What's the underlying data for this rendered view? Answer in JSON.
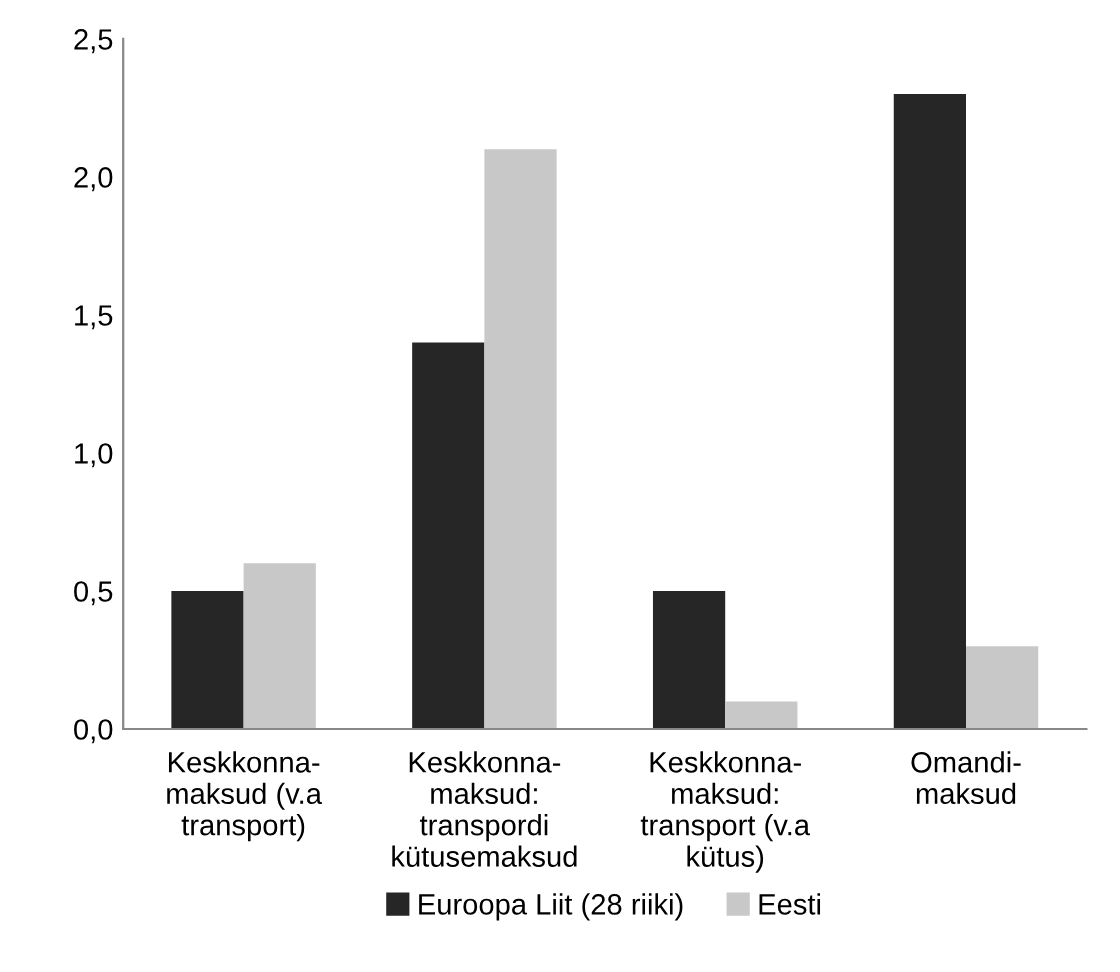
{
  "chart_data": {
    "type": "bar",
    "categories": [
      "Keskkonna-\nmaksud (v.a\ntransport)",
      "Keskkonna-\nmaksud:\ntranspordi\nkütusemaksud",
      "Keskkonna-\nmaksud:\ntransport (v.a\nkütus)",
      "Omandi-\nmaksud"
    ],
    "series": [
      {
        "name": "Euroopa Liit (28 riiki)",
        "color": "#262626",
        "values": [
          0.5,
          1.4,
          0.5,
          2.3
        ]
      },
      {
        "name": "Eesti",
        "color": "#c8c8c8",
        "values": [
          0.6,
          2.1,
          0.1,
          0.3
        ]
      }
    ],
    "ylim": [
      0,
      2.5
    ],
    "yticks": [
      {
        "value": 0,
        "label": "0,0"
      },
      {
        "value": 0.5,
        "label": "0,5"
      },
      {
        "value": 1,
        "label": "1,0"
      },
      {
        "value": 1.5,
        "label": "1,5"
      },
      {
        "value": 2,
        "label": "2,0"
      },
      {
        "value": 2.5,
        "label": "2,5"
      }
    ],
    "grid": false,
    "legend": "bottom"
  }
}
